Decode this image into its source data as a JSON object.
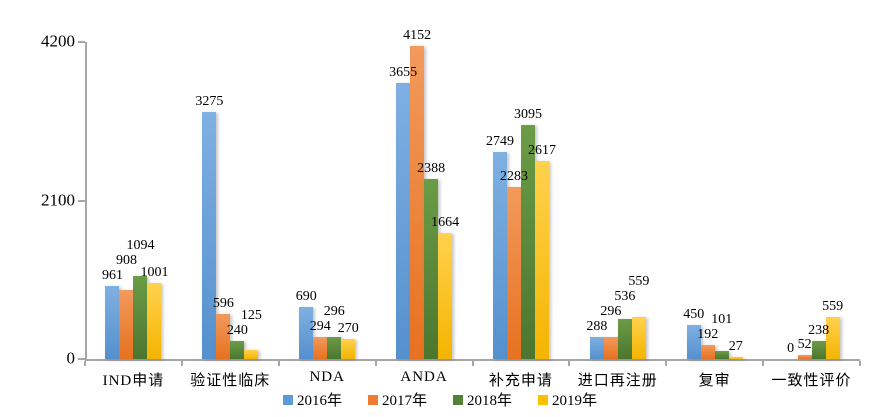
{
  "chart_data": {
    "type": "bar",
    "title": "",
    "grid": false,
    "legend_position": "bottom",
    "axis_color": "#a6a6a6",
    "text_color": "#000000",
    "categories": [
      "IND申请",
      "验证性临床",
      "NDA",
      "ANDA",
      "补充申请",
      "进口再注册",
      "复审",
      "一致性评价"
    ],
    "series": [
      {
        "name": "2016年",
        "color": "#5B9BD5",
        "color_light": "#7FB0E2",
        "color_dark": "#5590CD",
        "values": [
          961,
          3275,
          690,
          3655,
          2749,
          288,
          450,
          0
        ]
      },
      {
        "name": "2017年",
        "color": "#ED7D31",
        "color_light": "#F29A5C",
        "color_dark": "#E7711F",
        "values": [
          908,
          596,
          294,
          4152,
          2283,
          296,
          192,
          52
        ]
      },
      {
        "name": "2018年",
        "color": "#548235",
        "color_light": "#6B9C46",
        "color_dark": "#4C762F",
        "values": [
          1094,
          240,
          296,
          2388,
          3095,
          536,
          101,
          238
        ]
      },
      {
        "name": "2019年",
        "color": "#FFC000",
        "color_light": "#FFD24E",
        "color_dark": "#F4B400",
        "values": [
          1001,
          125,
          270,
          1664,
          2617,
          559,
          27,
          559
        ]
      }
    ],
    "y_axis": {
      "min": 0,
      "max": 4200,
      "tick_labels": [
        "0",
        "2100",
        "4200"
      ],
      "tick_values": [
        0,
        2100,
        4200
      ]
    },
    "value_labels_visible": true
  }
}
